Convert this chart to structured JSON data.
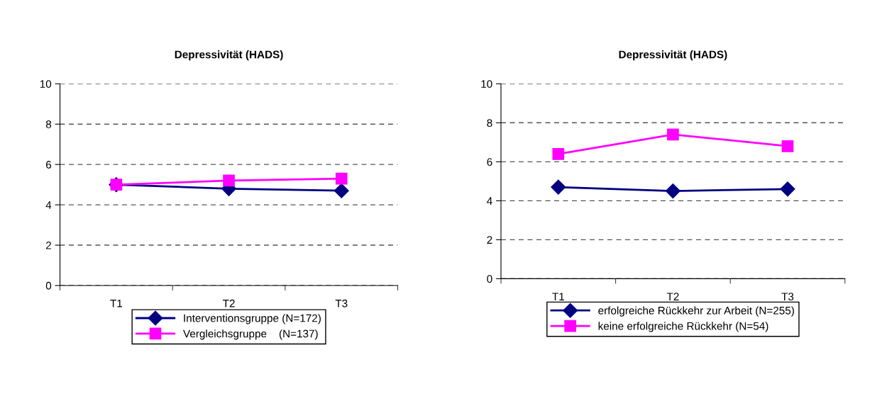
{
  "chart_data": [
    {
      "type": "line",
      "title": "Depressivität (HADS)",
      "categories": [
        "T1",
        "T2",
        "T3"
      ],
      "ylim": [
        0,
        10
      ],
      "yticks": [
        0,
        2,
        4,
        6,
        8,
        10
      ],
      "grid": "y",
      "legend": "bottom",
      "series": [
        {
          "name": "Interventionsgruppe (N=172)",
          "color": "#000080",
          "marker": "diamond",
          "values": [
            5.0,
            4.8,
            4.7
          ]
        },
        {
          "name": "Vergleichsgruppe    (N=137)",
          "color": "#ff00ff",
          "marker": "square",
          "values": [
            5.0,
            5.2,
            5.3
          ]
        }
      ]
    },
    {
      "type": "line",
      "title": "Depressivität (HADS)",
      "categories": [
        "T1",
        "T2",
        "T3"
      ],
      "ylim": [
        0,
        10
      ],
      "yticks": [
        0,
        2,
        4,
        6,
        8,
        10
      ],
      "grid": "y",
      "legend": "bottom",
      "series": [
        {
          "name": "erfolgreiche Rückkehr zur Arbeit (N=255)",
          "color": "#000080",
          "marker": "diamond",
          "values": [
            4.7,
            4.5,
            4.6
          ]
        },
        {
          "name": "keine erfolgreiche Rückkehr (N=54)",
          "color": "#ff00ff",
          "marker": "square",
          "values": [
            6.4,
            7.4,
            6.8
          ]
        }
      ]
    }
  ]
}
